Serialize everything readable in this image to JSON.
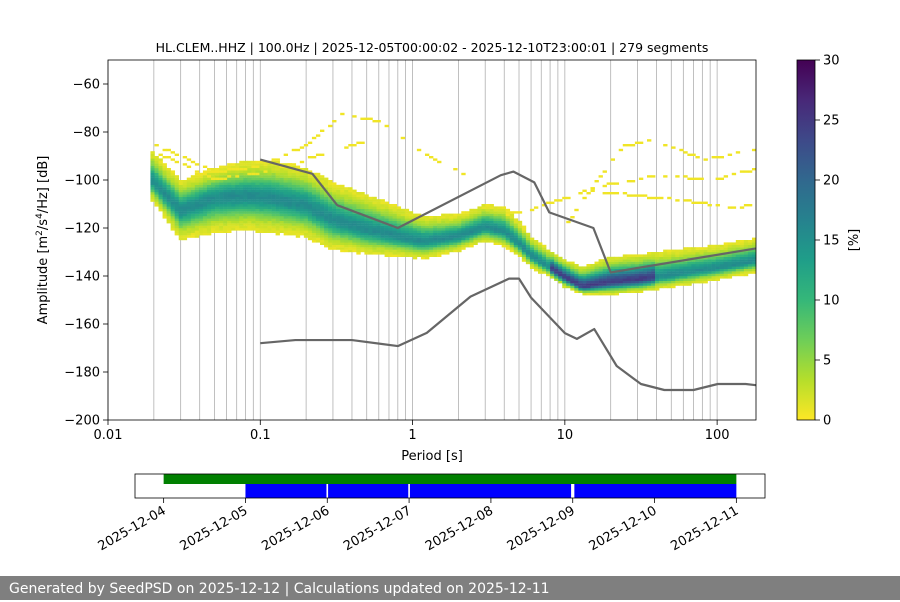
{
  "chart_data": {
    "type": "heatmap",
    "title": "HL.CLEM..HHZ | 100.0Hz | 2025-12-05T00:00:02 - 2025-12-10T23:00:01 | 279 segments",
    "xlabel": "Period [s]",
    "ylabel_parts": [
      "Amplitude [m",
      "2",
      "/s",
      "4",
      "/Hz] [dB]"
    ],
    "xscale": "log",
    "xlim": [
      0.01,
      180
    ],
    "ylim": [
      -200,
      -50
    ],
    "x_ticks": [
      {
        "value": 0.01,
        "label": "0.01"
      },
      {
        "value": 0.1,
        "label": "0.1"
      },
      {
        "value": 1,
        "label": "1"
      },
      {
        "value": 10,
        "label": "10"
      },
      {
        "value": 100,
        "label": "100"
      }
    ],
    "y_ticks": [
      {
        "value": -60,
        "label": "−60"
      },
      {
        "value": -80,
        "label": "−80"
      },
      {
        "value": -100,
        "label": "−100"
      },
      {
        "value": -120,
        "label": "−120"
      },
      {
        "value": -140,
        "label": "−140"
      },
      {
        "value": -160,
        "label": "−160"
      },
      {
        "value": -180,
        "label": "−180"
      },
      {
        "value": -200,
        "label": "−200"
      }
    ],
    "colorbar": {
      "label": "[%]",
      "min": 0,
      "max": 30,
      "ticks": [
        {
          "value": 0,
          "label": "0"
        },
        {
          "value": 5,
          "label": "5"
        },
        {
          "value": 10,
          "label": "10"
        },
        {
          "value": 15,
          "label": "15"
        },
        {
          "value": 20,
          "label": "20"
        },
        {
          "value": 25,
          "label": "25"
        },
        {
          "value": 30,
          "label": "30"
        }
      ],
      "colormap": [
        "#fde725",
        "#b5de2b",
        "#6ece58",
        "#35b779",
        "#1f9e89",
        "#26828e",
        "#31688e",
        "#3e4989",
        "#482878",
        "#440154"
      ]
    },
    "psd_period_range": [
      0.019,
      180
    ],
    "psd_mode_curve": {
      "periods": [
        0.019,
        0.03,
        0.05,
        0.08,
        0.12,
        0.2,
        0.3,
        0.5,
        0.8,
        1.2,
        2.0,
        3.0,
        4.0,
        5.0,
        6.0,
        8.0,
        10,
        13,
        16,
        20,
        30,
        50,
        100,
        180
      ],
      "values": [
        -100,
        -113,
        -108,
        -107,
        -108,
        -111,
        -117,
        -121,
        -124,
        -126,
        -124,
        -120,
        -122,
        -127,
        -132,
        -137,
        -141,
        -145,
        -144,
        -143,
        -142,
        -140,
        -137,
        -134
      ]
    },
    "psd_spread_lower": [
      8,
      12,
      14,
      14,
      14,
      13,
      12,
      10,
      8,
      7,
      6,
      6,
      6,
      5,
      5,
      4,
      4,
      3,
      4,
      5,
      5,
      5,
      5,
      5
    ],
    "psd_spread_upper": [
      12,
      12,
      12,
      14,
      15,
      15,
      15,
      14,
      12,
      10,
      9,
      9,
      10,
      9,
      8,
      7,
      7,
      8,
      9,
      10,
      10,
      10,
      9,
      9
    ],
    "psd_outlier_curves": [
      {
        "periods": [
          0.019,
          0.05,
          0.1,
          0.2,
          0.35,
          0.6,
          1.0,
          1.5,
          2.5
        ],
        "values": [
          -85,
          -97,
          -95,
          -86,
          -73,
          -76,
          -86,
          -93,
          -100
        ]
      },
      {
        "periods": [
          0.019,
          0.05,
          0.1,
          0.2,
          0.5
        ],
        "values": [
          -88,
          -100,
          -98,
          -92,
          -84
        ]
      },
      {
        "periods": [
          10,
          15,
          20,
          25,
          40,
          80,
          180
        ],
        "values": [
          -120,
          -104,
          -93,
          -86,
          -84,
          -92,
          -88
        ]
      },
      {
        "periods": [
          4,
          6,
          10,
          20,
          40,
          100,
          180
        ],
        "values": [
          -115,
          -113,
          -108,
          -102,
          -99,
          -100,
          -96
        ]
      },
      {
        "periods": [
          15,
          30,
          60,
          120,
          180
        ],
        "values": [
          -105,
          -107,
          -109,
          -112,
          -111
        ]
      }
    ],
    "nhnm": {
      "periods": [
        0.1,
        0.22,
        0.32,
        0.8,
        3.8,
        4.6,
        6.3,
        7.9,
        15.4,
        20,
        180
      ],
      "values": [
        -91.5,
        -97.4,
        -110.5,
        -120,
        -98,
        -96.5,
        -101,
        -113.5,
        -120,
        -138.5,
        -128.5
      ]
    },
    "nlnm": {
      "periods": [
        0.1,
        0.17,
        0.4,
        0.8,
        1.24,
        2.4,
        4.3,
        5.0,
        6.0,
        10,
        12,
        15.6,
        21.9,
        31.6,
        45,
        70,
        101,
        154,
        180
      ],
      "values": [
        -168,
        -166.7,
        -166.7,
        -169.2,
        -163.7,
        -148.6,
        -141.1,
        -141.1,
        -149,
        -163.8,
        -166.2,
        -162.1,
        -177.5,
        -185,
        -187.5,
        -187.5,
        -185,
        -185,
        -185.5
      ]
    },
    "timeline": {
      "date_ticks": [
        {
          "value": 0,
          "label": "2025-12-04"
        },
        {
          "value": 1,
          "label": "2025-12-05"
        },
        {
          "value": 2,
          "label": "2025-12-06"
        },
        {
          "value": 3,
          "label": "2025-12-07"
        },
        {
          "value": 4,
          "label": "2025-12-08"
        },
        {
          "value": 5,
          "label": "2025-12-09"
        },
        {
          "value": 6,
          "label": "2025-12-10"
        },
        {
          "value": 7,
          "label": "2025-12-11"
        }
      ],
      "xlim": [
        -0.35,
        7.35
      ],
      "data_availability": {
        "color": "#008000",
        "start": 0,
        "end": 7
      },
      "psd_segments": {
        "color": "#0000ff",
        "ranges": [
          [
            1,
            1.99
          ],
          [
            2.01,
            2.99
          ],
          [
            3.01,
            4.98
          ],
          [
            5.02,
            7
          ]
        ]
      }
    }
  },
  "footer": {
    "text": "Generated by SeedPSD on 2025-12-12 | Calculations updated on 2025-12-11"
  }
}
